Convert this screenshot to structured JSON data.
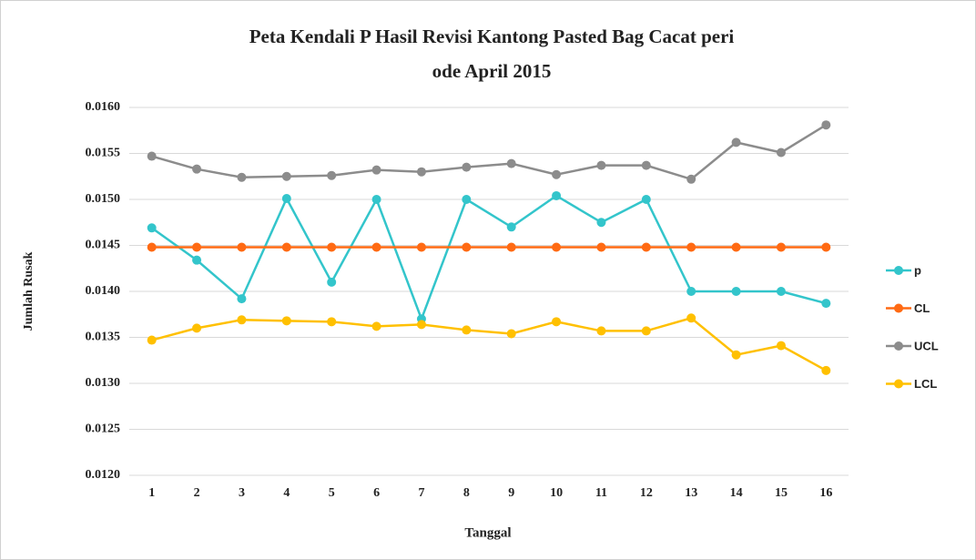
{
  "chart_data": {
    "type": "line",
    "title": [
      "Peta Kendali P Hasil Revisi  Kantong Pasted Bag Cacat peri",
      "ode April 2015"
    ],
    "xlabel": "Tanggal",
    "ylabel": "Jumlah Rusak",
    "categories": [
      "1",
      "2",
      "3",
      "4",
      "5",
      "6",
      "7",
      "8",
      "9",
      "10",
      "11",
      "12",
      "13",
      "14",
      "15",
      "16"
    ],
    "series": [
      {
        "name": "p",
        "color": "#33c5cb",
        "values": [
          0.01469,
          0.01434,
          0.01392,
          0.01501,
          0.0141,
          0.015,
          0.0137,
          0.015,
          0.0147,
          0.01504,
          0.01475,
          0.015,
          0.014,
          0.014,
          0.014,
          0.01387
        ]
      },
      {
        "name": "CL",
        "color": "#ff6a13",
        "values": [
          0.01448,
          0.01448,
          0.01448,
          0.01448,
          0.01448,
          0.01448,
          0.01448,
          0.01448,
          0.01448,
          0.01448,
          0.01448,
          0.01448,
          0.01448,
          0.01448,
          0.01448,
          0.01448
        ]
      },
      {
        "name": "UCL",
        "color": "#8c8c8c",
        "values": [
          0.01547,
          0.01533,
          0.01524,
          0.01525,
          0.01526,
          0.01532,
          0.0153,
          0.01535,
          0.01539,
          0.01527,
          0.01537,
          0.01537,
          0.01522,
          0.01562,
          0.01551,
          0.01581
        ]
      },
      {
        "name": "LCL",
        "color": "#ffc000",
        "values": [
          0.01347,
          0.0136,
          0.01369,
          0.01368,
          0.01367,
          0.01362,
          0.01364,
          0.01358,
          0.01354,
          0.01367,
          0.01357,
          0.01357,
          0.01371,
          0.01331,
          0.01341,
          0.01314
        ]
      }
    ],
    "ylim": [
      0.012,
      0.016
    ],
    "yticks": [
      {
        "value": 0.012,
        "label": "0.0120"
      },
      {
        "value": 0.0125,
        "label": "0.0125"
      },
      {
        "value": 0.013,
        "label": "0.0130"
      },
      {
        "value": 0.0135,
        "label": "0.0135"
      },
      {
        "value": 0.014,
        "label": "0.0140"
      },
      {
        "value": 0.0145,
        "label": "0.0145"
      },
      {
        "value": 0.015,
        "label": "0.0150"
      },
      {
        "value": 0.0155,
        "label": "0.0155"
      },
      {
        "value": 0.016,
        "label": "0.0160"
      }
    ],
    "grid": true,
    "legend": "right"
  }
}
